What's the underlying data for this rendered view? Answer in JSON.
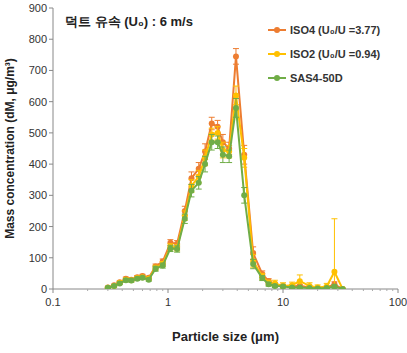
{
  "chart_data": {
    "type": "line",
    "title": "덕트 유속 (U₀) : 6 m/s",
    "x_label": "Particle size (μm)",
    "y_label": "Mass concentration (dM, μg/m³)",
    "log": "x",
    "grid": false,
    "legend": "right",
    "marker": "circle",
    "xlim": [
      0.1,
      100
    ],
    "xticks": [
      0.1,
      1,
      10,
      100
    ],
    "ylim": [
      0,
      900
    ],
    "yticks": [
      0,
      100,
      200,
      300,
      400,
      500,
      600,
      700,
      800,
      900
    ],
    "x": [
      0.3,
      0.34,
      0.38,
      0.43,
      0.48,
      0.54,
      0.6,
      0.68,
      0.78,
      0.9,
      1.05,
      1.2,
      1.4,
      1.6,
      1.85,
      2.1,
      2.4,
      2.7,
      3.0,
      3.4,
      3.9,
      4.6,
      5.5,
      6.6,
      7.5,
      8.5,
      10,
      12,
      14,
      17,
      20,
      24,
      28,
      33
    ],
    "series": [
      {
        "name": "ISO4 (U₀/U =3.77)",
        "color": "#ED7D31",
        "values": [
          5,
          12,
          22,
          33,
          30,
          38,
          42,
          36,
          72,
          88,
          148,
          145,
          250,
          355,
          385,
          440,
          530,
          520,
          470,
          450,
          745,
          430,
          115,
          48,
          25,
          15,
          10,
          8,
          10,
          5,
          3,
          5,
          15,
          0
        ],
        "errors": [
          2,
          3,
          4,
          5,
          5,
          5,
          5,
          5,
          8,
          8,
          10,
          10,
          15,
          20,
          20,
          25,
          20,
          20,
          25,
          20,
          25,
          30,
          20,
          10,
          8,
          6,
          5,
          5,
          5,
          4,
          3,
          4,
          8,
          2
        ]
      },
      {
        "name": "ISO2 (U₀/U =0.94)",
        "color": "#FFC000",
        "values": [
          4,
          10,
          20,
          30,
          28,
          35,
          38,
          33,
          68,
          80,
          135,
          132,
          235,
          330,
          360,
          420,
          495,
          500,
          445,
          440,
          620,
          420,
          90,
          40,
          20,
          18,
          10,
          12,
          25,
          10,
          5,
          8,
          55,
          0
        ],
        "errors": [
          2,
          3,
          4,
          5,
          5,
          5,
          5,
          5,
          8,
          8,
          10,
          10,
          15,
          20,
          20,
          25,
          20,
          20,
          25,
          20,
          30,
          30,
          20,
          10,
          8,
          10,
          10,
          10,
          20,
          10,
          8,
          10,
          170,
          2
        ]
      },
      {
        "name": "SAS4-50D",
        "color": "#70AD47",
        "values": [
          4,
          10,
          18,
          28,
          27,
          33,
          36,
          30,
          65,
          75,
          130,
          128,
          225,
          315,
          340,
          400,
          470,
          470,
          430,
          425,
          580,
          300,
          80,
          35,
          15,
          10,
          8,
          5,
          5,
          3,
          2,
          3,
          8,
          0
        ],
        "errors": [
          2,
          3,
          4,
          5,
          5,
          5,
          5,
          5,
          8,
          8,
          10,
          10,
          15,
          20,
          20,
          25,
          25,
          20,
          25,
          20,
          30,
          25,
          15,
          8,
          6,
          5,
          4,
          3,
          3,
          2,
          2,
          2,
          5,
          2
        ]
      }
    ]
  }
}
